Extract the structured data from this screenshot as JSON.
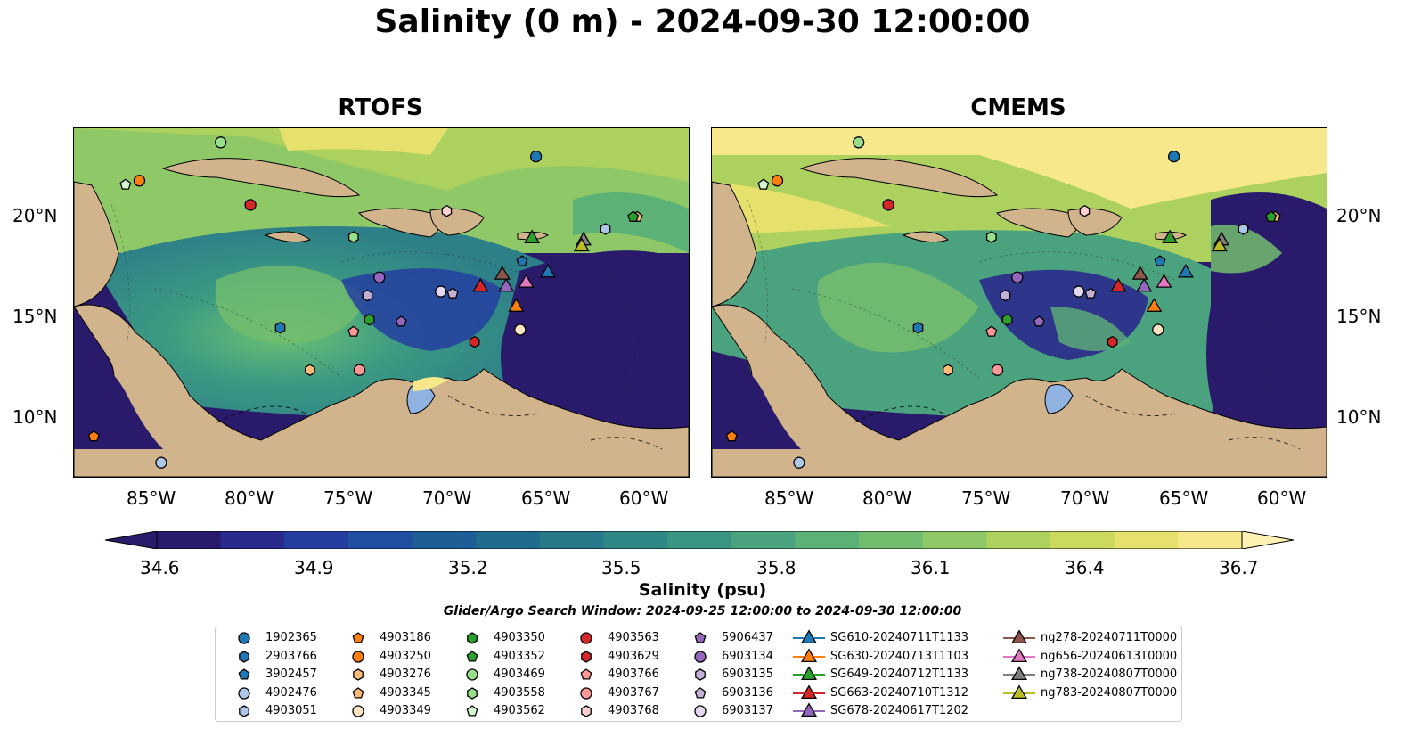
{
  "title": "Salinity (0 m) - 2024-09-30 12:00:00",
  "panels": [
    {
      "title": "RTOFS"
    },
    {
      "title": "CMEMS"
    }
  ],
  "lat_labels": [
    "20°N",
    "15°N",
    "10°N"
  ],
  "lon_labels": [
    "85°W",
    "80°W",
    "75°W",
    "70°W",
    "65°W",
    "60°W"
  ],
  "colorbar": {
    "label": "Salinity (psu)",
    "ticks": [
      "34.6",
      "34.9",
      "35.2",
      "35.5",
      "35.8",
      "36.1",
      "36.4",
      "36.7"
    ],
    "colors": [
      "#2a1a6c",
      "#2a2a8c",
      "#233ea0",
      "#1f4f9e",
      "#1e5e96",
      "#216b8e",
      "#277989",
      "#2f8786",
      "#3b9583",
      "#4aa37e",
      "#5cb177",
      "#73bd6e",
      "#8fc866",
      "#add15f",
      "#cbd95e",
      "#e6e06c",
      "#f7e88c"
    ]
  },
  "search_window": "Glider/Argo Search Window: 2024-09-25 12:00:00 to 2024-09-30 12:00:00",
  "legend": [
    {
      "label": "1902365",
      "marker": "circle",
      "color": "#1f77b4"
    },
    {
      "label": "2903766",
      "marker": "hexagon",
      "color": "#1f77b4"
    },
    {
      "label": "3902457",
      "marker": "pentagon",
      "color": "#1f77b4"
    },
    {
      "label": "4902476",
      "marker": "circle",
      "color": "#aec7e8"
    },
    {
      "label": "4903051",
      "marker": "hexagon",
      "color": "#aec7e8"
    },
    {
      "label": "4903186",
      "marker": "pentagon",
      "color": "#ff7f0e"
    },
    {
      "label": "4903250",
      "marker": "circle",
      "color": "#ff7f0e"
    },
    {
      "label": "4903276",
      "marker": "hexagon",
      "color": "#ffbb78"
    },
    {
      "label": "4903345",
      "marker": "pentagon",
      "color": "#ffbb78"
    },
    {
      "label": "4903349",
      "marker": "circle",
      "color": "#ffe4c4"
    },
    {
      "label": "4903350",
      "marker": "hexagon",
      "color": "#2ca02c"
    },
    {
      "label": "4903352",
      "marker": "pentagon",
      "color": "#2ca02c"
    },
    {
      "label": "4903469",
      "marker": "circle",
      "color": "#98df8a"
    },
    {
      "label": "4903558",
      "marker": "hexagon",
      "color": "#98df8a"
    },
    {
      "label": "4903562",
      "marker": "pentagon",
      "color": "#d5f5cf"
    },
    {
      "label": "4903563",
      "marker": "circle",
      "color": "#d62728"
    },
    {
      "label": "4903629",
      "marker": "hexagon",
      "color": "#d62728"
    },
    {
      "label": "4903766",
      "marker": "pentagon",
      "color": "#ff9896"
    },
    {
      "label": "4903767",
      "marker": "circle",
      "color": "#ff9896"
    },
    {
      "label": "4903768",
      "marker": "hexagon",
      "color": "#ffd1cf"
    },
    {
      "label": "5906437",
      "marker": "pentagon",
      "color": "#9467bd"
    },
    {
      "label": "6903134",
      "marker": "circle",
      "color": "#9467bd"
    },
    {
      "label": "6903135",
      "marker": "hexagon",
      "color": "#c5b0d5"
    },
    {
      "label": "6903136",
      "marker": "pentagon",
      "color": "#c5b0d5"
    },
    {
      "label": "6903137",
      "marker": "circle",
      "color": "#e4d7f0"
    },
    {
      "label": "SG610-20240711T1133",
      "marker": "triangle",
      "color": "#1f77b4"
    },
    {
      "label": "SG630-20240713T1103",
      "marker": "triangle",
      "color": "#ff7f0e"
    },
    {
      "label": "SG649-20240712T1133",
      "marker": "triangle",
      "color": "#2ca02c"
    },
    {
      "label": "SG663-20240710T1312",
      "marker": "triangle",
      "color": "#d62728"
    },
    {
      "label": "SG678-20240617T1202",
      "marker": "triangle",
      "color": "#9467bd"
    },
    {
      "label": "ng278-20240711T0000",
      "marker": "triangle",
      "color": "#8c564b"
    },
    {
      "label": "ng656-20240613T0000",
      "marker": "triangle",
      "color": "#e377c2"
    },
    {
      "label": "ng738-20240807T0000",
      "marker": "triangle",
      "color": "#7f7f7f"
    },
    {
      "label": "ng783-20240807T0000",
      "marker": "triangle",
      "color": "#bcbd22"
    }
  ],
  "map_points": [
    {
      "id": "1902365",
      "lon": -65.7,
      "lat": 22.9
    },
    {
      "id": "2903766",
      "lon": -78.6,
      "lat": 14.4
    },
    {
      "id": "3902457",
      "lon": -66.4,
      "lat": 17.7
    },
    {
      "id": "4902476",
      "lon": -84.6,
      "lat": 7.7
    },
    {
      "id": "4903051",
      "lon": -62.2,
      "lat": 19.3
    },
    {
      "id": "4903186",
      "lon": -88.0,
      "lat": 9.0
    },
    {
      "id": "4903250",
      "lon": -85.7,
      "lat": 21.7
    },
    {
      "id": "4903276",
      "lon": -77.1,
      "lat": 12.3
    },
    {
      "id": "4903345",
      "lon": -60.6,
      "lat": 19.9
    },
    {
      "id": "4903349",
      "lon": -66.5,
      "lat": 14.3
    },
    {
      "id": "4903350",
      "lon": -74.1,
      "lat": 14.8
    },
    {
      "id": "4903352",
      "lon": -60.8,
      "lat": 19.9
    },
    {
      "id": "4903469",
      "lon": -81.6,
      "lat": 23.6
    },
    {
      "id": "4903558",
      "lon": -74.9,
      "lat": 18.9
    },
    {
      "id": "4903562",
      "lon": -86.4,
      "lat": 21.5
    },
    {
      "id": "4903563",
      "lon": -80.1,
      "lat": 20.5
    },
    {
      "id": "4903629",
      "lon": -68.8,
      "lat": 13.7
    },
    {
      "id": "4903766",
      "lon": -74.9,
      "lat": 14.2
    },
    {
      "id": "4903767",
      "lon": -74.6,
      "lat": 12.3
    },
    {
      "id": "4903768",
      "lon": -70.2,
      "lat": 20.2
    },
    {
      "id": "5906437",
      "lon": -72.5,
      "lat": 14.7
    },
    {
      "id": "6903134",
      "lon": -73.6,
      "lat": 16.9
    },
    {
      "id": "6903135",
      "lon": -74.2,
      "lat": 16.0
    },
    {
      "id": "6903136",
      "lon": -69.9,
      "lat": 16.1
    },
    {
      "id": "6903137",
      "lon": -70.5,
      "lat": 16.2
    },
    {
      "id": "SG610-20240711T1133",
      "lon": -65.1,
      "lat": 17.2
    },
    {
      "id": "SG630-20240713T1103",
      "lon": -66.7,
      "lat": 15.5
    },
    {
      "id": "SG649-20240712T1133",
      "lon": -65.9,
      "lat": 18.9
    },
    {
      "id": "SG663-20240710T1312",
      "lon": -68.5,
      "lat": 16.5
    },
    {
      "id": "SG678-20240617T1202",
      "lon": -67.2,
      "lat": 16.5
    },
    {
      "id": "ng278-20240711T0000",
      "lon": -67.4,
      "lat": 17.1
    },
    {
      "id": "ng656-20240613T0000",
      "lon": -66.2,
      "lat": 16.7
    },
    {
      "id": "ng738-20240807T0000",
      "lon": -63.3,
      "lat": 18.8
    },
    {
      "id": "ng783-20240807T0000",
      "lon": -63.4,
      "lat": 18.5
    }
  ]
}
